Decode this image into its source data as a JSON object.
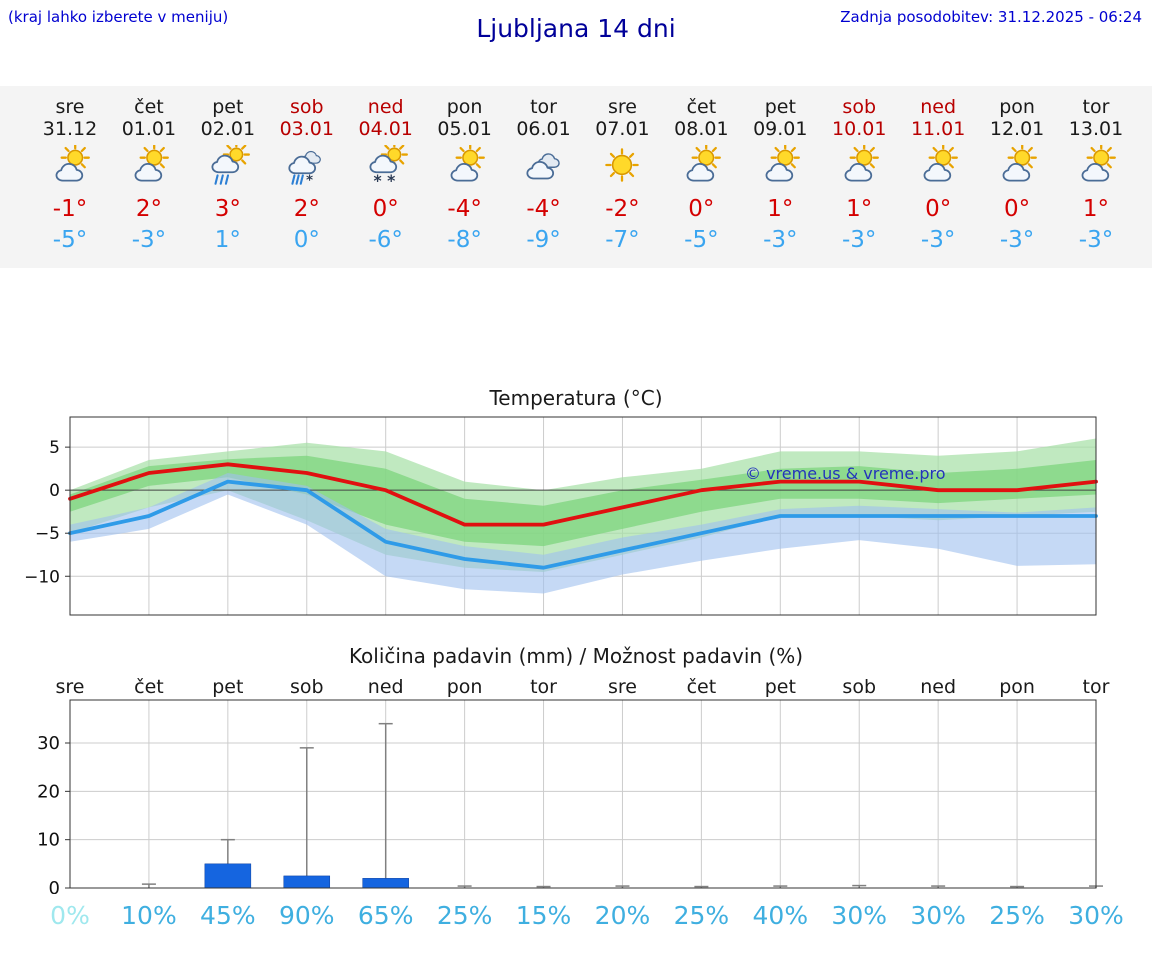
{
  "header": {
    "hint": "(kraj lahko izberete v meniju)",
    "title": "Ljubljana 14 dni",
    "updated": "Zadnja posodobitev: 31.12.2025 - 06:24"
  },
  "forecast": {
    "days": [
      {
        "day": "sre",
        "date": "31.12",
        "weekend": false,
        "icon": "sun-cloud",
        "high": "-1°",
        "low": "-5°"
      },
      {
        "day": "čet",
        "date": "01.01",
        "weekend": false,
        "icon": "sun-cloud",
        "high": "2°",
        "low": "-3°"
      },
      {
        "day": "pet",
        "date": "02.01",
        "weekend": false,
        "icon": "rain",
        "high": "3°",
        "low": "1°"
      },
      {
        "day": "sob",
        "date": "03.01",
        "weekend": true,
        "icon": "sleet",
        "high": "2°",
        "low": "0°"
      },
      {
        "day": "ned",
        "date": "04.01",
        "weekend": true,
        "icon": "snow",
        "high": "0°",
        "low": "-6°"
      },
      {
        "day": "pon",
        "date": "05.01",
        "weekend": false,
        "icon": "sun-cloud",
        "high": "-4°",
        "low": "-8°"
      },
      {
        "day": "tor",
        "date": "06.01",
        "weekend": false,
        "icon": "cloudy",
        "high": "-4°",
        "low": "-9°"
      },
      {
        "day": "sre",
        "date": "07.01",
        "weekend": false,
        "icon": "sunny",
        "high": "-2°",
        "low": "-7°"
      },
      {
        "day": "čet",
        "date": "08.01",
        "weekend": false,
        "icon": "sun-cloud",
        "high": "0°",
        "low": "-5°"
      },
      {
        "day": "pet",
        "date": "09.01",
        "weekend": false,
        "icon": "sun-cloud",
        "high": "1°",
        "low": "-3°"
      },
      {
        "day": "sob",
        "date": "10.01",
        "weekend": true,
        "icon": "sun-cloud",
        "high": "1°",
        "low": "-3°"
      },
      {
        "day": "ned",
        "date": "11.01",
        "weekend": true,
        "icon": "sun-cloud",
        "high": "0°",
        "low": "-3°"
      },
      {
        "day": "pon",
        "date": "12.01",
        "weekend": false,
        "icon": "sun-cloud",
        "high": "0°",
        "low": "-3°"
      },
      {
        "day": "tor",
        "date": "13.01",
        "weekend": false,
        "icon": "sun-cloud",
        "high": "1°",
        "low": "-3°"
      }
    ]
  },
  "chart_data": [
    {
      "type": "line",
      "title": "Temperatura (°C)",
      "categories": [
        "31.12",
        "01.01",
        "02.01",
        "03.01",
        "04.01",
        "05.01",
        "06.01",
        "07.01",
        "08.01",
        "09.01",
        "10.01",
        "11.01",
        "12.01",
        "13.01"
      ],
      "series": [
        {
          "name": "max-temperature",
          "color": "#e01010",
          "values": [
            -1,
            2,
            3,
            2,
            0,
            -4,
            -4,
            -2,
            0,
            1,
            1,
            0,
            0,
            1
          ]
        },
        {
          "name": "min-temperature",
          "color": "#2f9be8",
          "values": [
            -5,
            -3,
            1,
            0,
            -6,
            -8,
            -9,
            -7,
            -5,
            -3,
            -3,
            -3,
            -3,
            -3
          ]
        }
      ],
      "bands": [
        {
          "name": "max-range-outer",
          "color": "#a5e0a5",
          "opacity": 0.7,
          "upper": [
            0,
            3.5,
            4.5,
            5.5,
            4.5,
            1,
            0,
            1.5,
            2.5,
            4.5,
            4.5,
            4,
            4.5,
            6
          ],
          "lower": [
            -5,
            -2,
            0,
            -3.5,
            -7.5,
            -9,
            -9.5,
            -7.5,
            -5.5,
            -3,
            -3,
            -3.5,
            -3,
            -2.5
          ]
        },
        {
          "name": "max-range-inner",
          "color": "#7ed47e",
          "opacity": 0.75,
          "upper": [
            -0.5,
            2.8,
            3.6,
            4,
            2.5,
            -1,
            -1.8,
            0,
            1.2,
            2.5,
            2.8,
            2,
            2.5,
            3.5
          ],
          "lower": [
            -2.5,
            0.5,
            1.5,
            -0.5,
            -4,
            -6,
            -6.5,
            -4.5,
            -2.5,
            -1,
            -1,
            -1.5,
            -1,
            -0.5
          ]
        },
        {
          "name": "min-range",
          "color": "#9fc0ee",
          "opacity": 0.6,
          "upper": [
            -4,
            -2,
            2,
            0.5,
            -4.5,
            -6.5,
            -7.5,
            -5.5,
            -4,
            -2.2,
            -1.8,
            -2.2,
            -2.6,
            -2
          ],
          "lower": [
            -6,
            -4.5,
            -0.5,
            -4,
            -10,
            -11.5,
            -12,
            -9.8,
            -8.2,
            -6.8,
            -5.8,
            -6.8,
            -8.8,
            -8.6
          ]
        }
      ],
      "ylim": [
        -14.5,
        8.5
      ],
      "yticks": [
        5,
        0,
        -5,
        -10
      ],
      "grid": true,
      "legend": "none",
      "watermark": "© vreme.us & vreme.pro",
      "watermark_color": "#2233bb"
    },
    {
      "type": "bar",
      "title": "Količina padavin (mm) / Možnost padavin (%)",
      "categories": [
        "sre",
        "čet",
        "pet",
        "sob",
        "ned",
        "pon",
        "tor",
        "sre",
        "čet",
        "pet",
        "sob",
        "ned",
        "pon",
        "tor"
      ],
      "values": [
        0,
        0,
        5,
        2.5,
        2,
        0,
        0,
        0,
        0,
        0,
        0,
        0,
        0,
        0
      ],
      "whisker_max": [
        0,
        0.8,
        10,
        29,
        34,
        0.4,
        0.3,
        0.4,
        0.3,
        0.4,
        0.5,
        0.4,
        0.3,
        0.4
      ],
      "bar_color": "#1565e0",
      "whisker_color": "#808080",
      "probabilities": [
        "0%",
        "10%",
        "45%",
        "90%",
        "65%",
        "25%",
        "15%",
        "20%",
        "25%",
        "40%",
        "30%",
        "30%",
        "25%",
        "30%"
      ],
      "prob_color": "#3fafe0",
      "prob_muted_color": "#9fe8ee",
      "prob_muted_indices": [
        0
      ],
      "ylim": [
        0,
        38.9
      ],
      "yticks": [
        0,
        10,
        20,
        30
      ],
      "grid": true,
      "legend": "none"
    }
  ]
}
